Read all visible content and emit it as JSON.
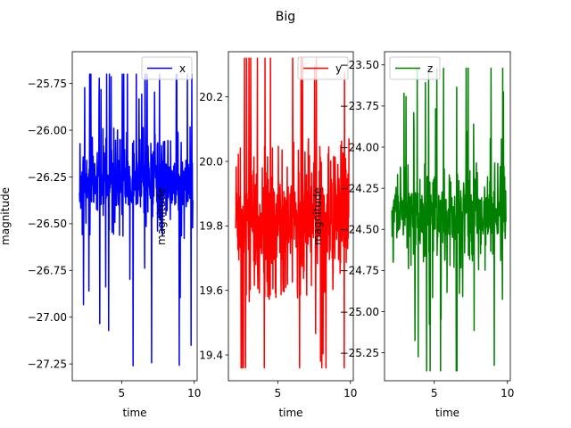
{
  "chart_data": {
    "title": "Big",
    "charts": [
      {
        "type": "line",
        "xlabel": "time",
        "ylabel": "magnitude",
        "xlim": [
          1.6,
          10.2
        ],
        "ylim": [
          -27.34,
          -25.58
        ],
        "xticks": [
          5,
          10
        ],
        "yticks": [
          -27.25,
          -27.0,
          -26.75,
          -26.5,
          -26.25,
          -26.0,
          -25.75
        ],
        "ytick_labels": [
          "−27.25",
          "−27.00",
          "−26.75",
          "−26.50",
          "−26.25",
          "−26.00",
          "−25.75"
        ],
        "legend": "top-right",
        "series": [
          {
            "name": "x",
            "color": "#0000ff",
            "center": -26.28,
            "spread": 0.2,
            "min": -27.26,
            "max": -25.7,
            "seed": 11
          }
        ]
      },
      {
        "type": "line",
        "xlabel": "time",
        "ylabel": "magnitude",
        "xlim": [
          1.6,
          10.2
        ],
        "ylim": [
          19.32,
          20.34
        ],
        "xticks": [
          5,
          10
        ],
        "yticks": [
          19.4,
          19.6,
          19.8,
          20.0,
          20.2
        ],
        "ytick_labels": [
          "19.4",
          "19.6",
          "19.8",
          "20.0",
          "20.2"
        ],
        "legend": "top-right",
        "series": [
          {
            "name": "y",
            "color": "#ff0000",
            "center": 19.82,
            "spread": 0.17,
            "min": 19.36,
            "max": 20.32,
            "seed": 23
          }
        ]
      },
      {
        "type": "line",
        "xlabel": "time",
        "ylabel": "magnitude",
        "xlim": [
          1.6,
          10.2
        ],
        "ylim": [
          -25.42,
          -23.42
        ],
        "xticks": [
          5,
          10
        ],
        "yticks": [
          -25.25,
          -25.0,
          -24.75,
          -24.5,
          -24.25,
          -24.0,
          -23.75,
          -23.5
        ],
        "ytick_labels": [
          "−25.25",
          "−25.00",
          "−24.75",
          "−24.50",
          "−24.25",
          "−24.00",
          "−23.75",
          "−23.50"
        ],
        "legend": "top-left",
        "series": [
          {
            "name": "z",
            "color": "#008000",
            "center": -24.42,
            "spread": 0.22,
            "min": -25.36,
            "max": -23.52,
            "seed": 37
          }
        ]
      }
    ]
  }
}
